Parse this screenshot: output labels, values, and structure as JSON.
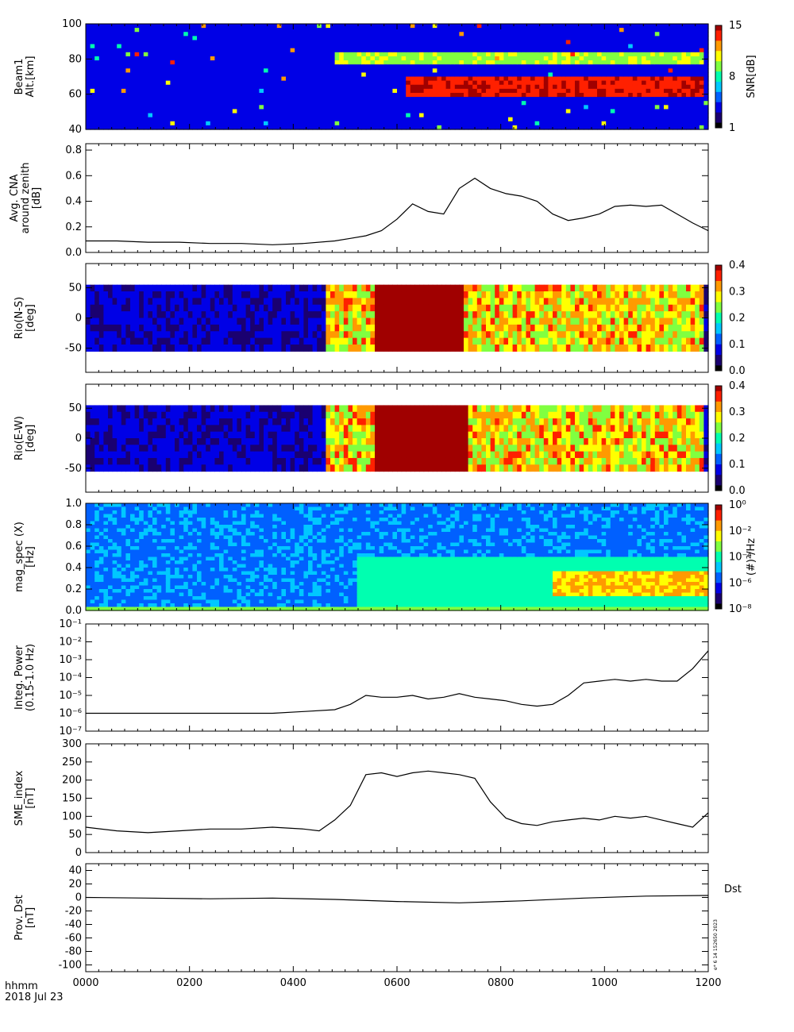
{
  "colors": {
    "jet": [
      "#000000",
      "#1a0070",
      "#0000e6",
      "#0060ff",
      "#00c8ff",
      "#00ffb0",
      "#80ff40",
      "#ffff00",
      "#ff9a00",
      "#ff2000",
      "#a00000"
    ],
    "line": "#000000",
    "axes": "#000000"
  },
  "footer": {
    "time_label": "hhmm",
    "date_label": "2018 Jul 23",
    "stamp": "e* 6 14 152650 2023"
  },
  "chart_data": [
    {
      "id": "beam1",
      "type": "heatmap",
      "ylabel_lines": [
        "Beam1",
        "Alt.[km]"
      ],
      "yticks": [
        "100",
        "80",
        "60",
        "40"
      ],
      "ylim": [
        40,
        100
      ],
      "colorbar_label": "SNR[dB]",
      "colorbar_ticks": [
        "15",
        "8",
        "1"
      ],
      "features": [
        {
          "t_start": 620,
          "t_end": 1190,
          "alt_center": 65,
          "alt_width": 6,
          "level": "high"
        },
        {
          "t_start": 480,
          "t_end": 1190,
          "alt_center": 80,
          "alt_width": 4,
          "level": "medium"
        }
      ]
    },
    {
      "id": "cna",
      "type": "line",
      "ylabel_lines": [
        "Avg. CNA",
        "around zenith",
        "[dB]"
      ],
      "yticks": [
        "0.8",
        "0.6",
        "0.4",
        "0.2",
        "0.0"
      ],
      "ylim": [
        0,
        0.85
      ],
      "x": [
        0,
        60,
        120,
        180,
        240,
        300,
        360,
        420,
        480,
        510,
        540,
        570,
        600,
        630,
        660,
        690,
        720,
        750,
        780,
        810,
        840,
        870,
        900,
        930,
        960,
        990,
        1020,
        1050,
        1080,
        1110,
        1140,
        1170,
        1200
      ],
      "y": [
        0.09,
        0.09,
        0.08,
        0.08,
        0.07,
        0.07,
        0.06,
        0.07,
        0.09,
        0.11,
        0.13,
        0.17,
        0.26,
        0.38,
        0.32,
        0.3,
        0.5,
        0.58,
        0.5,
        0.46,
        0.44,
        0.4,
        0.3,
        0.25,
        0.27,
        0.3,
        0.36,
        0.37,
        0.36,
        0.37,
        0.3,
        0.23,
        0.17
      ]
    },
    {
      "id": "rio_ns",
      "type": "heatmap",
      "ylabel_lines": [
        "Rio(N-S)",
        "[deg]"
      ],
      "yticks": [
        "50",
        "0",
        "-50"
      ],
      "ylim": [
        -90,
        90
      ],
      "colorbar_ticks": [
        "0.4",
        "0.3",
        "0.2",
        "0.1",
        "0.0"
      ],
      "features": [
        {
          "t_start": 560,
          "t_end": 730,
          "level": "saturated"
        },
        {
          "t_start": 460,
          "t_end": 1190,
          "level": "elevated"
        }
      ]
    },
    {
      "id": "rio_ew",
      "type": "heatmap",
      "ylabel_lines": [
        "Rio(E-W)",
        "[deg]"
      ],
      "yticks": [
        "50",
        "0",
        "-50"
      ],
      "ylim": [
        -90,
        90
      ],
      "colorbar_ticks": [
        "0.4",
        "0.3",
        "0.2",
        "0.1",
        "0.0"
      ],
      "features": [
        {
          "t_start": 560,
          "t_end": 740,
          "level": "saturated"
        },
        {
          "t_start": 460,
          "t_end": 1190,
          "level": "elevated"
        }
      ]
    },
    {
      "id": "magspec",
      "type": "heatmap",
      "ylabel_lines": [
        "mag_spec (X)",
        "[Hz]"
      ],
      "yticks": [
        "1.0",
        "0.8",
        "0.6",
        "0.4",
        "0.2",
        "0.0"
      ],
      "ylim": [
        0,
        1.0
      ],
      "colorbar_label": "(#)²/Hz",
      "colorbar_ticks": [
        "10⁰",
        "10⁻²",
        "10⁻⁴",
        "10⁻⁶",
        "10⁻⁸"
      ],
      "features": [
        {
          "t_start": 520,
          "t_end": 1200,
          "band": [
            0.0,
            0.5
          ],
          "level": "enhanced"
        },
        {
          "t_start": 900,
          "t_end": 1200,
          "band": [
            0.15,
            0.35
          ],
          "level": "strong"
        }
      ]
    },
    {
      "id": "integ_power",
      "type": "line",
      "log_scale": true,
      "ylabel_lines": [
        "Integ. Power",
        "(0.15-1.0 Hz)"
      ],
      "yticks": [
        "10⁻¹",
        "10⁻²",
        "10⁻³",
        "10⁻⁴",
        "10⁻⁵",
        "10⁻⁶",
        "10⁻⁷"
      ],
      "ylim_exp": [
        -7,
        -1
      ],
      "x": [
        0,
        60,
        120,
        180,
        240,
        300,
        360,
        420,
        480,
        510,
        540,
        570,
        600,
        630,
        660,
        690,
        720,
        750,
        780,
        810,
        840,
        870,
        900,
        930,
        960,
        990,
        1020,
        1050,
        1080,
        1110,
        1140,
        1170,
        1200
      ],
      "y_exp": [
        -6.0,
        -6.0,
        -6.0,
        -6.0,
        -6.0,
        -6.0,
        -6.0,
        -5.9,
        -5.8,
        -5.5,
        -5.0,
        -5.1,
        -5.1,
        -5.0,
        -5.2,
        -5.1,
        -4.9,
        -5.1,
        -5.2,
        -5.3,
        -5.5,
        -5.6,
        -5.5,
        -5.0,
        -4.3,
        -4.2,
        -4.1,
        -4.2,
        -4.1,
        -4.2,
        -4.2,
        -3.5,
        -2.5
      ]
    },
    {
      "id": "sme",
      "type": "line",
      "ylabel_lines": [
        "SME_index",
        "[nT]"
      ],
      "yticks": [
        "300",
        "250",
        "200",
        "150",
        "100",
        "50",
        "0"
      ],
      "ylim": [
        0,
        300
      ],
      "x": [
        0,
        60,
        120,
        180,
        240,
        300,
        360,
        420,
        450,
        480,
        510,
        540,
        570,
        600,
        630,
        660,
        690,
        720,
        750,
        780,
        810,
        840,
        870,
        900,
        930,
        960,
        990,
        1020,
        1050,
        1080,
        1110,
        1140,
        1170,
        1200
      ],
      "y": [
        70,
        60,
        55,
        60,
        65,
        65,
        70,
        65,
        60,
        90,
        130,
        215,
        220,
        210,
        220,
        225,
        220,
        215,
        205,
        140,
        95,
        80,
        75,
        85,
        90,
        95,
        90,
        100,
        95,
        100,
        90,
        80,
        70,
        110
      ]
    },
    {
      "id": "dst",
      "type": "line",
      "ylabel_lines": [
        "Prov. Dst",
        "[nT]"
      ],
      "yticks": [
        "40",
        "20",
        "0",
        "-20",
        "-40",
        "-60",
        "-80",
        "-100"
      ],
      "ylim": [
        -110,
        50
      ],
      "right_label": "Dst",
      "x": [
        0,
        120,
        240,
        360,
        480,
        600,
        720,
        840,
        960,
        1080,
        1200
      ],
      "y": [
        0,
        -1,
        -2,
        -1,
        -3,
        -6,
        -8,
        -5,
        -1,
        2,
        3
      ]
    }
  ],
  "time_axis": {
    "tick_labels": [
      "0000",
      "0200",
      "0400",
      "0600",
      "0800",
      "1000",
      "1200"
    ],
    "minutes": [
      0,
      120,
      240,
      360,
      480,
      600,
      720
    ]
  }
}
